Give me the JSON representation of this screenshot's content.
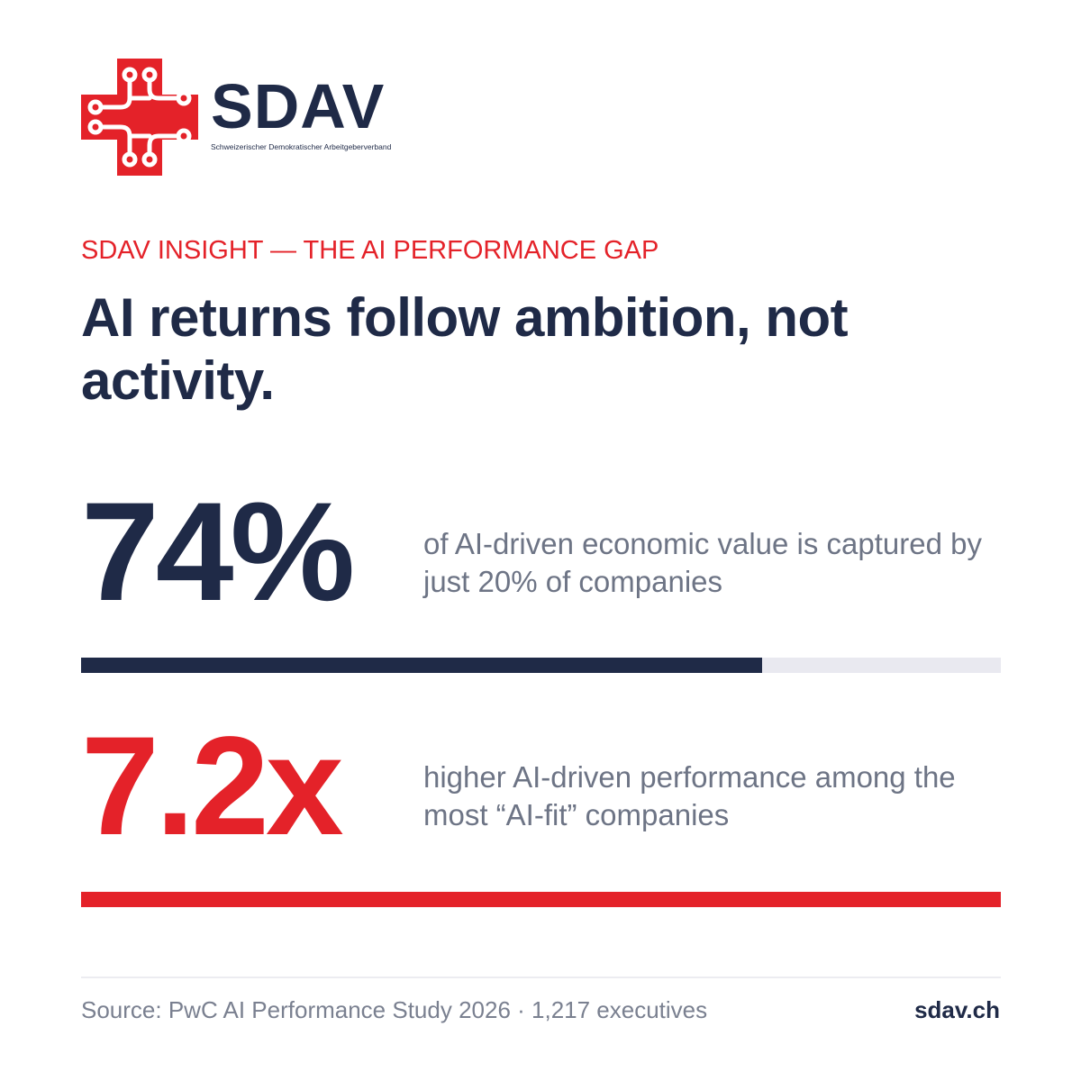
{
  "brand": {
    "name": "SDAV",
    "tagline": "Schweizerischer Demokratischer Arbeitgeberverband",
    "colors": {
      "navy": "#1f2a47",
      "red": "#e42229",
      "track": "#e9e9f0"
    }
  },
  "eyebrow": "SDAV INSIGHT — THE AI PERFORMANCE GAP",
  "headline": "AI returns follow ambition, not activity.",
  "stats": [
    {
      "value": "74%",
      "description": "of AI-driven economic value is captured by just 20% of companies",
      "bar_fill_fraction": 0.74
    },
    {
      "value": "7.2x",
      "description": "higher AI-driven performance among the most “AI-fit” companies"
    }
  ],
  "footer": {
    "source": "Source: PwC AI Performance Study 2026 · 1,217 executives",
    "site": "sdav.ch"
  }
}
